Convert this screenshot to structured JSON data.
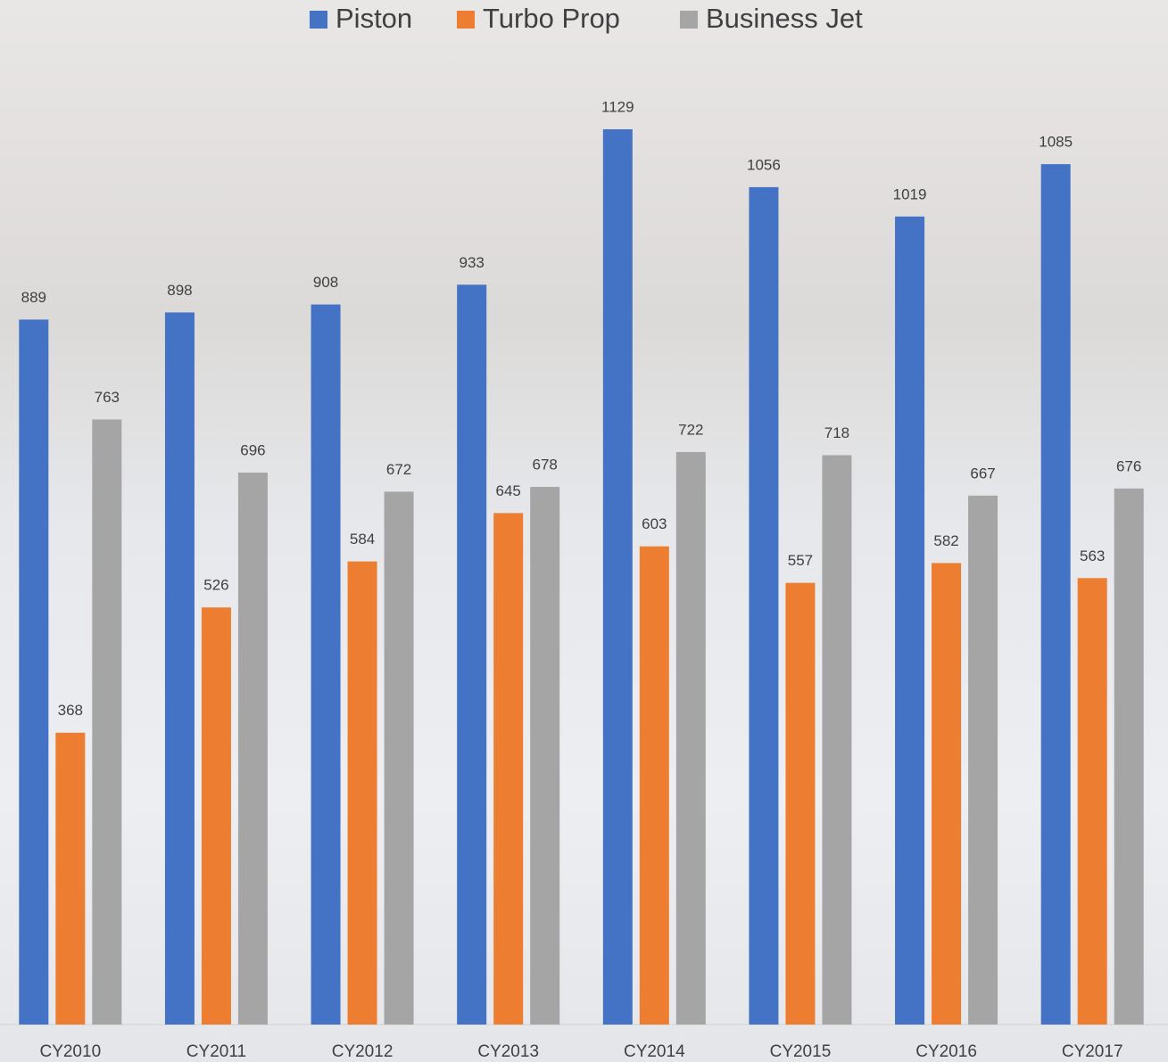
{
  "chart_data": {
    "type": "bar",
    "categories": [
      "CY2010",
      "CY2011",
      "CY2012",
      "CY2013",
      "CY2014",
      "CY2015",
      "CY2016",
      "CY2017"
    ],
    "series": [
      {
        "name": "Piston",
        "color": "#4472c4",
        "values": [
          889,
          898,
          908,
          933,
          1129,
          1056,
          1019,
          1085
        ]
      },
      {
        "name": "Turbo Prop",
        "color": "#ed7d31",
        "values": [
          368,
          526,
          584,
          645,
          603,
          557,
          582,
          563
        ]
      },
      {
        "name": "Business Jet",
        "color": "#a5a5a5",
        "values": [
          763,
          696,
          672,
          678,
          722,
          718,
          667,
          676
        ]
      }
    ],
    "ylim": [
      0,
      1200
    ],
    "legend": "top"
  }
}
